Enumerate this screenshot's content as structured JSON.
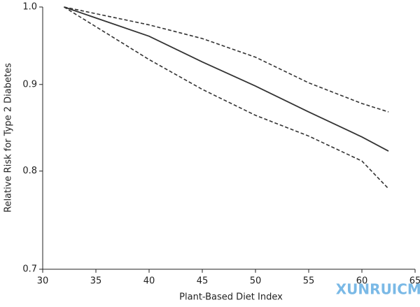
{
  "chart_data": {
    "type": "line",
    "xlabel": "Plant-Based Diet Index",
    "ylabel": "Relative Risk for Type 2 Diabetes",
    "x": [
      32,
      40,
      45,
      50,
      55,
      60,
      62.5
    ],
    "series": [
      {
        "color": "#333333",
        "style": "solid",
        "values": [
          1.0,
          0.961,
          0.928,
          0.898,
          0.867,
          0.838,
          0.822
        ]
      },
      {
        "color": "#333333",
        "style": "dashed",
        "values": [
          1.0,
          0.976,
          0.958,
          0.934,
          0.902,
          0.877,
          0.867
        ]
      },
      {
        "color": "#333333",
        "style": "dashed",
        "values": [
          1.0,
          0.931,
          0.894,
          0.863,
          0.839,
          0.811,
          0.781
        ]
      }
    ],
    "xlim": [
      30,
      65
    ],
    "xticks": [
      30,
      35,
      40,
      45,
      50,
      55,
      60,
      65
    ],
    "ylim": [
      0.7,
      1.0
    ],
    "yticks": [
      {
        "value": 1,
        "label": "1.0"
      },
      0.9,
      0.8,
      0.7
    ],
    "ylog": true,
    "grid": false,
    "watermark": "XUNRUICMS"
  }
}
